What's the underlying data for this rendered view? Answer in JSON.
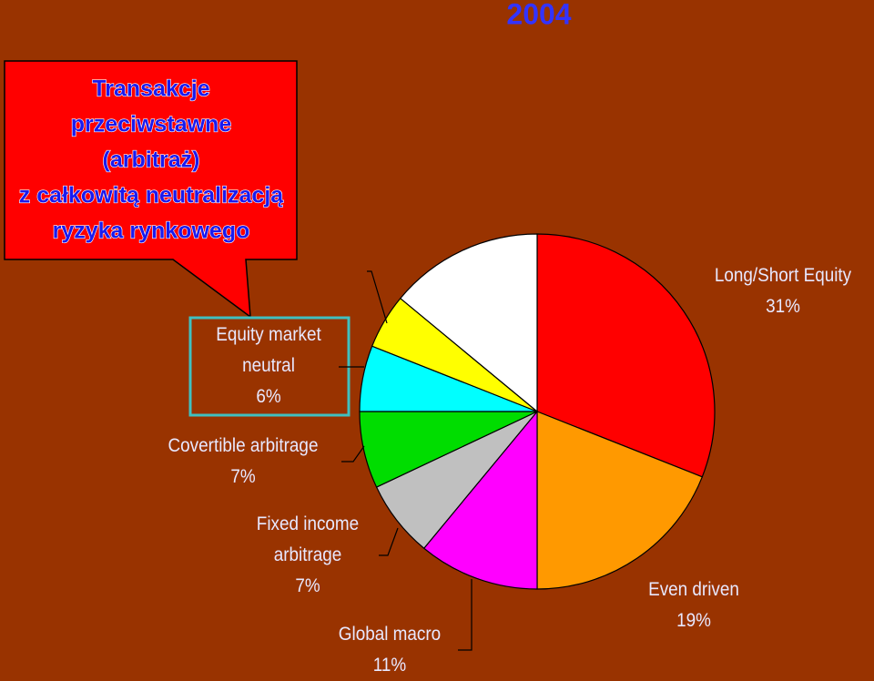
{
  "chart_data": {
    "type": "pie",
    "title": "2004",
    "annotation_lines": [
      "Transakcje",
      "przeciwstawne",
      "(arbitraż)",
      "z całkowitą neutralizacją",
      "ryzyka rynkowego"
    ],
    "categories": [
      "Long/Short Equity",
      "Even driven",
      "Global macro",
      "Fixed income arbitrage",
      "Covertible arbitrage",
      "Equity market neutral",
      null,
      null
    ],
    "values": [
      31,
      19,
      11,
      7,
      7,
      6,
      5,
      14
    ],
    "value_labels": [
      "31%",
      "19%",
      "11%",
      "7%",
      "7%",
      "6%",
      null,
      null
    ],
    "colors": [
      "#ff0000",
      "#ff9900",
      "#ff00ff",
      "#c0c0c0",
      "#00dd00",
      "#00ffff",
      "#ffff00",
      "#ffffff"
    ]
  }
}
